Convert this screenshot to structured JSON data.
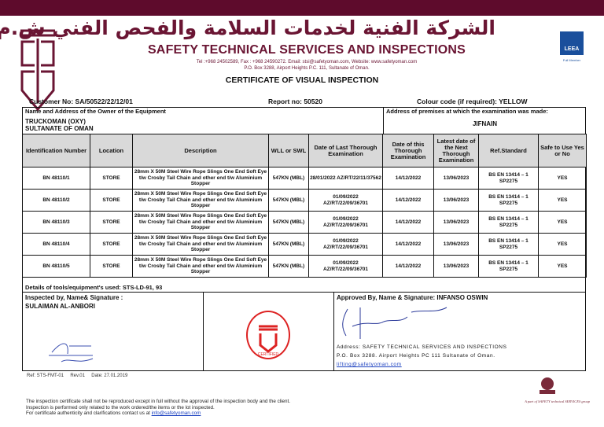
{
  "header": {
    "arabic_name": "الشركة الفنية لخدمات السلامة والفحص الفني ش.م.م",
    "company_name": "SAFETY TECHNICAL SERVICES AND INSPECTIONS",
    "contact_line1": "Tel :+968 24502589, Fax : +968 24590272. Email: stsi@safetyoman.com, Website: www.safetyoman.com",
    "contact_line2": "P.O. Box 3288, Airport Heights P.C. 111, Sultanate of Oman.",
    "leea_label": "LEEA",
    "leea_sub": "Full Member",
    "brand_color": "#5e0b2c"
  },
  "certificate_title": "CERTIFICATE OF VISUAL INSPECTION",
  "customer_no": "Customer No: SA/50522/22/12/01",
  "report_no": "Report no: 50520",
  "colour_code": "Colour code (if required): YELLOW",
  "owner_label": "Name and Address of the Owner of the Equipment",
  "owner_line1": "TRUCKOMAN (OXY)",
  "owner_line2": "SULTANATE OF OMAN",
  "premises_label": "Address of premises at which the examination was made:",
  "premises": "JIFNAIN",
  "table": {
    "headers": [
      "Identification Number",
      "Location",
      "Description",
      "WLL or SWL",
      "Date of Last Thorough Examination",
      "Date of this Thorough Examination",
      "Latest date of the Next Thorough Examination",
      "Ref.Standard",
      "Safe to Use Yes or No"
    ],
    "rows": [
      [
        "BN 48110/1",
        "STORE",
        "28mm X 50M Steel Wire Rope Slings One End Soft Eye t/w Crosby Tail Chain and other end t/w Aluminium Stopper",
        "547KN (MBL)",
        "28/01/2022 AZ/RT/22/11/37562",
        "14/12/2022",
        "13/06/2023",
        "BS EN 13414 – 1 SP2275",
        "YES"
      ],
      [
        "BN 48110/2",
        "STORE",
        "28mm X 50M Steel Wire Rope Slings One End Soft Eye t/w Crosby Tail Chain and other end t/w Aluminium Stopper",
        "547KN (MBL)",
        "01/09/2022 AZ/RT/22/09/36701",
        "14/12/2022",
        "13/06/2023",
        "BS EN 13414 – 1 SP2275",
        "YES"
      ],
      [
        "BN 48110/3",
        "STORE",
        "28mm X 50M Steel Wire Rope Slings One End Soft Eye t/w Crosby Tail Chain and other end t/w Aluminium Stopper",
        "547KN (MBL)",
        "01/09/2022 AZ/RT/22/09/36701",
        "14/12/2022",
        "13/06/2023",
        "BS EN 13414 – 1 SP2275",
        "YES"
      ],
      [
        "BN 48110/4",
        "STORE",
        "28mm X 50M Steel Wire Rope Slings One End Soft Eye t/w Crosby Tail Chain and other end t/w Aluminium Stopper",
        "547KN (MBL)",
        "01/09/2022 AZ/RT/22/09/36701",
        "14/12/2022",
        "13/06/2023",
        "BS EN 13414 – 1 SP2275",
        "YES"
      ],
      [
        "BN 48110/5",
        "STORE",
        "28mm X 50M Steel Wire Rope Slings One End Soft Eye t/w Crosby Tail Chain and other end t/w Aluminium Stopper",
        "547KN (MBL)",
        "01/09/2022 AZ/RT/22/09/36701",
        "14/12/2022",
        "13/06/2023",
        "BS EN 13414 – 1 SP2275",
        "YES"
      ]
    ]
  },
  "tools_used": "Details of tools/equipment's used: STS-LD-91, 93",
  "inspected_label": "Inspected by, Name& Signature :",
  "inspector": "SULAIMAN AL-ANBORI",
  "stamp_text": "CERTIFIED",
  "approved": "Approved By, Name & Signature: INFANSO OSWIN",
  "address_line1": "Address: SAFETY TECHNICAL SERVICES AND INSPECTIONS",
  "address_line2": "P.O. Box 3288. Airport Heights PC 111 Sultanate of Oman.",
  "address_email": "lifting@safetyoman.com",
  "form_ref": "Ref: STS-FMT-01     Rev.01     Date: 27.01.2019",
  "footer": {
    "line1": "The inspection certificate shall not be reproduced except in full without the approval of the inspection body and the client.",
    "line2": "Inspection is performed only related to the work ordered/the items or the lot inspected.",
    "line3": "For certificate authenticity and clarifications contact us at",
    "email": "info@safetyoman.com",
    "group": "A part of SAFETY technical SERVICES group"
  }
}
